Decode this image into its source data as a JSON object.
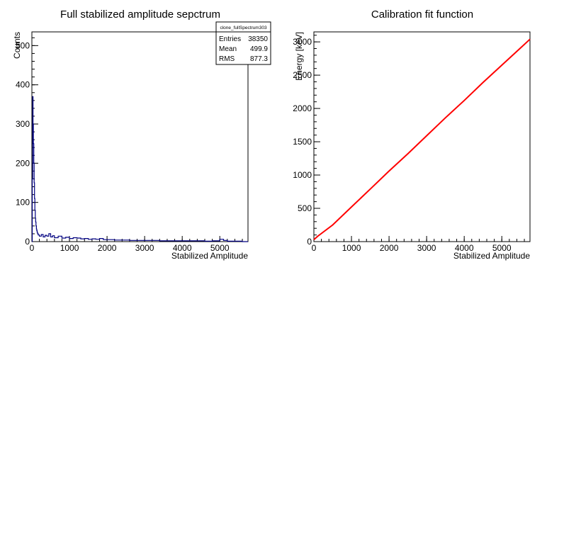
{
  "chart_data": [
    {
      "type": "line",
      "title": "Full stabilized amplitude sepctrum",
      "xlabel": "Stabilized Amplitude",
      "ylabel": "Counts",
      "xlim": [
        0,
        5750
      ],
      "ylim": [
        0,
        535
      ],
      "xticks": [
        0,
        1000,
        2000,
        3000,
        4000,
        5000
      ],
      "yticks": [
        0,
        100,
        200,
        300,
        400,
        500
      ],
      "line_color": "#000080",
      "series": [
        {
          "x": [
            0,
            10,
            20,
            30,
            40,
            50,
            60,
            70,
            80,
            90,
            100,
            110,
            120,
            130,
            140,
            150,
            170,
            200,
            250,
            300,
            350,
            400,
            450,
            500,
            550,
            600,
            700,
            800,
            900,
            1000,
            1100,
            1200,
            1300,
            1400,
            1500,
            1600,
            1700,
            1800,
            1900,
            2000,
            2200,
            2400,
            2600,
            2800,
            3000,
            3200,
            3400,
            3600,
            3800,
            4000,
            4200,
            4400,
            4600,
            4800,
            5000,
            5100,
            5200,
            5400,
            5600
          ],
          "values": [
            0,
            160,
            370,
            300,
            250,
            200,
            150,
            110,
            80,
            60,
            50,
            40,
            32,
            28,
            24,
            20,
            17,
            14,
            18,
            12,
            16,
            14,
            20,
            12,
            15,
            10,
            14,
            9,
            11,
            8,
            10,
            9,
            7,
            8,
            6,
            7,
            6,
            8,
            5,
            5,
            4,
            4,
            3,
            3,
            3,
            3,
            2,
            2,
            2,
            2,
            2,
            2,
            1,
            2,
            6,
            3,
            1,
            1,
            0
          ]
        }
      ],
      "stats_box": {
        "name": "clone_fullSpectrum303",
        "rows": [
          {
            "label": "Entries",
            "value": "38350"
          },
          {
            "label": "Mean",
            "value": "499.9"
          },
          {
            "label": "RMS",
            "value": "877.3"
          }
        ]
      }
    },
    {
      "type": "line",
      "title": "Calibration fit function",
      "xlabel": "Stabilized Amplitude",
      "ylabel": "Energy [keV]",
      "xlim": [
        0,
        5750
      ],
      "ylim": [
        0,
        3150
      ],
      "xticks": [
        0,
        1000,
        2000,
        3000,
        4000,
        5000
      ],
      "yticks": [
        0,
        500,
        1000,
        1500,
        2000,
        2500,
        3000
      ],
      "line_color": "#ff0000",
      "series": [
        {
          "x": [
            0,
            100,
            500,
            1000,
            1500,
            2000,
            2500,
            3000,
            3500,
            4000,
            4500,
            5000,
            5500,
            5750
          ],
          "values": [
            30,
            80,
            250,
            520,
            790,
            1060,
            1320,
            1590,
            1860,
            2120,
            2390,
            2650,
            2910,
            3040
          ]
        }
      ]
    }
  ]
}
